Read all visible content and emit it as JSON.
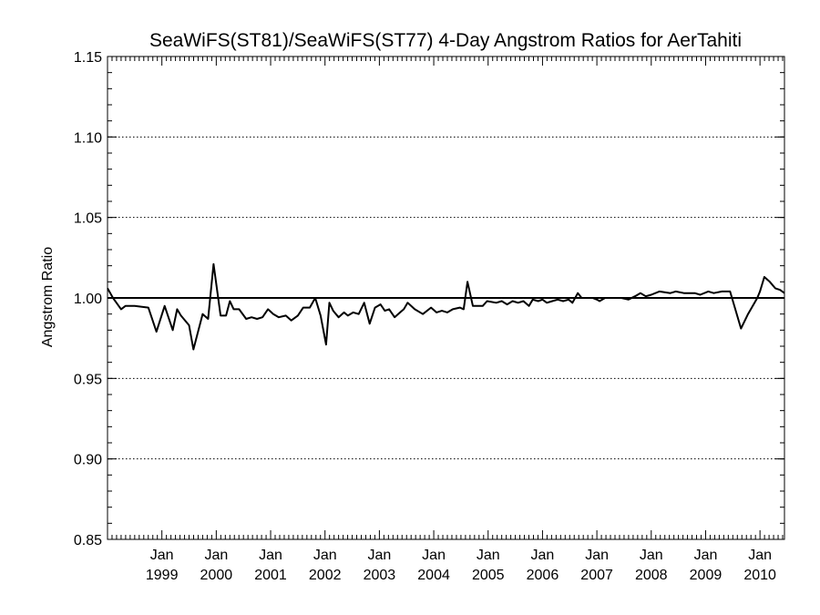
{
  "chart_data": {
    "type": "line",
    "title": "SeaWiFS(ST81)/SeaWiFS(ST77) 4-Day Angstrom Ratios for AerTahiti",
    "xlabel": "",
    "ylabel": "Angstrom Ratio",
    "ylim": [
      0.85,
      1.15
    ],
    "yticks": [
      0.85,
      0.9,
      0.95,
      1.0,
      1.05,
      1.1,
      1.15
    ],
    "ytick_labels": [
      "0.85",
      "0.90",
      "0.95",
      "1.00",
      "1.05",
      "1.10",
      "1.15"
    ],
    "xlim": [
      1998.0,
      2010.45
    ],
    "xticks": [
      1999,
      2000,
      2001,
      2002,
      2003,
      2004,
      2005,
      2006,
      2007,
      2008,
      2009,
      2010
    ],
    "xtick_labels": [
      {
        "line1": "Jan",
        "line2": "1999"
      },
      {
        "line1": "Jan",
        "line2": "2000"
      },
      {
        "line1": "Jan",
        "line2": "2001"
      },
      {
        "line1": "Jan",
        "line2": "2002"
      },
      {
        "line1": "Jan",
        "line2": "2003"
      },
      {
        "line1": "Jan",
        "line2": "2004"
      },
      {
        "line1": "Jan",
        "line2": "2005"
      },
      {
        "line1": "Jan",
        "line2": "2006"
      },
      {
        "line1": "Jan",
        "line2": "2007"
      },
      {
        "line1": "Jan",
        "line2": "2008"
      },
      {
        "line1": "Jan",
        "line2": "2009"
      },
      {
        "line1": "Jan",
        "line2": "2010"
      }
    ],
    "reference_line": 1.0,
    "grid": "dotted horizontal at major y ticks",
    "series": [
      {
        "x": [
          1998.0,
          1998.1,
          1998.25,
          1998.33,
          1998.5,
          1998.75,
          1998.9,
          1999.05,
          1999.2,
          1999.28,
          1999.35,
          1999.5,
          1999.58,
          1999.75,
          1999.85,
          1999.95,
          2000.08,
          2000.18,
          2000.25,
          2000.32,
          2000.42,
          2000.55,
          2000.65,
          2000.75,
          2000.85,
          2000.95,
          2001.05,
          2001.15,
          2001.28,
          2001.38,
          2001.5,
          2001.6,
          2001.72,
          2001.82,
          2001.92,
          2002.02,
          2002.08,
          2002.15,
          2002.25,
          2002.35,
          2002.42,
          2002.52,
          2002.62,
          2002.72,
          2002.82,
          2002.92,
          2003.02,
          2003.1,
          2003.18,
          2003.28,
          2003.38,
          2003.45,
          2003.52,
          2003.65,
          2003.8,
          2003.95,
          2004.05,
          2004.15,
          2004.25,
          2004.35,
          2004.48,
          2004.55,
          2004.62,
          2004.72,
          2004.85,
          2004.9,
          2004.98,
          2005.15,
          2005.25,
          2005.35,
          2005.45,
          2005.55,
          2005.65,
          2005.75,
          2005.82,
          2005.92,
          2006.0,
          2006.08,
          2006.18,
          2006.28,
          2006.38,
          2006.48,
          2006.55,
          2006.65,
          2006.72,
          2006.82,
          2006.92,
          2007.0,
          2007.05,
          2007.15,
          2007.3,
          2007.45,
          2007.58,
          2007.7,
          2007.8,
          2007.9,
          2008.0,
          2008.15,
          2008.35,
          2008.45,
          2008.6,
          2008.8,
          2008.9,
          2009.05,
          2009.15,
          2009.3,
          2009.45,
          2009.65,
          2009.78,
          2009.95,
          2010.0,
          2010.08,
          2010.18,
          2010.28,
          2010.37,
          2010.45
        ],
        "values": [
          1.006,
          1.0,
          0.993,
          0.995,
          0.995,
          0.994,
          0.979,
          0.995,
          0.98,
          0.993,
          0.989,
          0.983,
          0.968,
          0.99,
          0.987,
          1.021,
          0.989,
          0.989,
          0.998,
          0.993,
          0.993,
          0.987,
          0.988,
          0.987,
          0.988,
          0.993,
          0.99,
          0.988,
          0.989,
          0.986,
          0.989,
          0.994,
          0.994,
          1.0,
          0.989,
          0.971,
          0.997,
          0.992,
          0.988,
          0.991,
          0.989,
          0.991,
          0.99,
          0.997,
          0.984,
          0.994,
          0.996,
          0.992,
          0.993,
          0.988,
          0.991,
          0.993,
          0.997,
          0.993,
          0.99,
          0.994,
          0.991,
          0.992,
          0.991,
          0.993,
          0.994,
          0.993,
          1.01,
          0.995,
          0.995,
          0.995,
          0.998,
          0.997,
          0.998,
          0.996,
          0.998,
          0.997,
          0.998,
          0.995,
          0.999,
          0.998,
          0.999,
          0.997,
          0.998,
          0.999,
          0.998,
          0.999,
          0.997,
          1.003,
          1.0,
          1.0,
          1.0,
          0.999,
          0.998,
          1.0,
          1.0,
          1.0,
          0.999,
          1.001,
          1.003,
          1.001,
          1.002,
          1.004,
          1.003,
          1.004,
          1.003,
          1.003,
          1.002,
          1.004,
          1.003,
          1.004,
          1.004,
          0.981,
          0.99,
          1.0,
          1.004,
          1.013,
          1.01,
          1.006,
          1.005,
          1.003
        ]
      }
    ]
  }
}
